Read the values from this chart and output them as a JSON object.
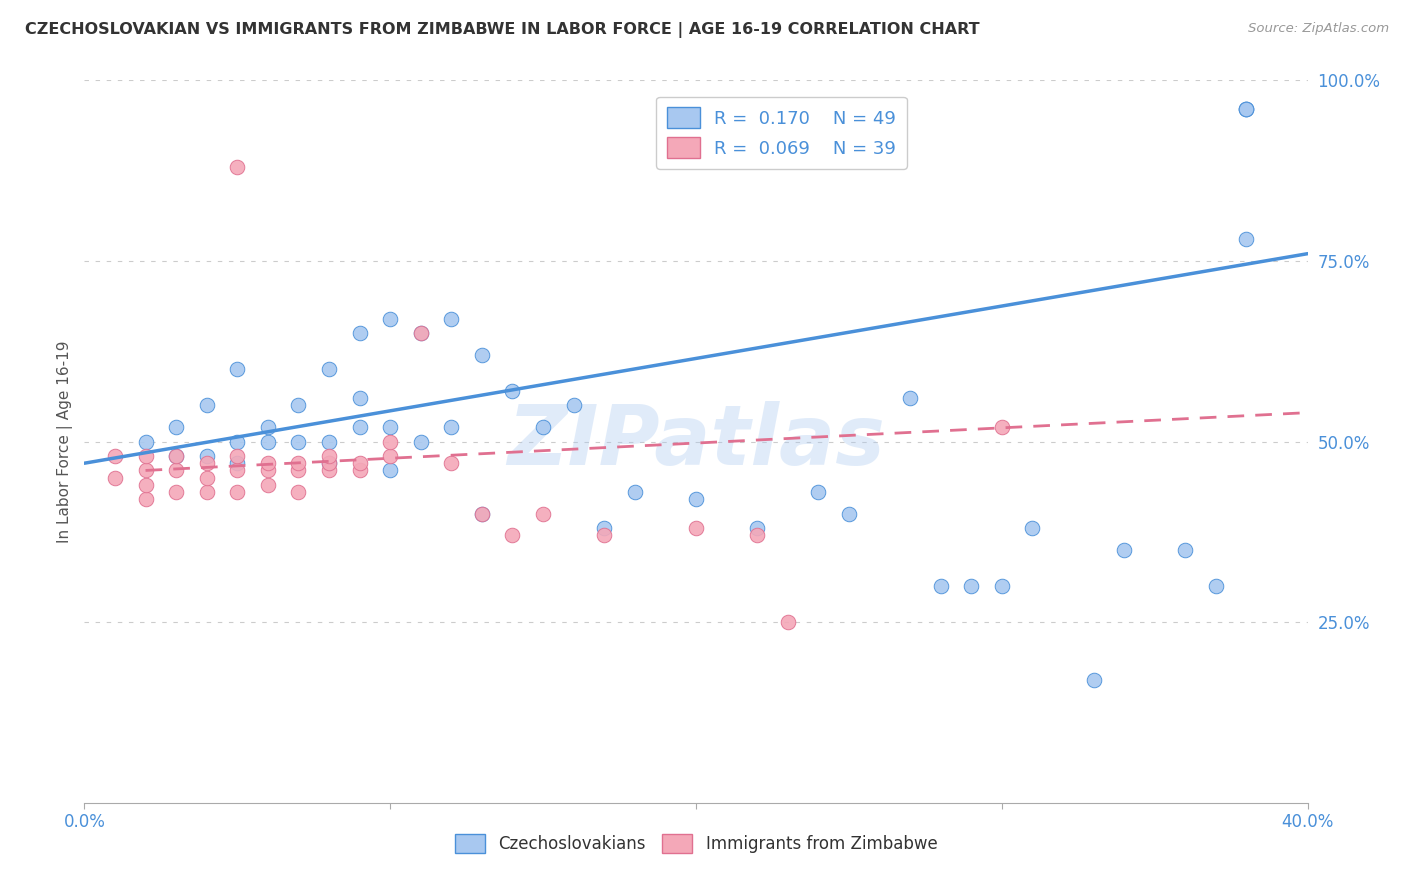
{
  "title": "CZECHOSLOVAKIAN VS IMMIGRANTS FROM ZIMBABWE IN LABOR FORCE | AGE 16-19 CORRELATION CHART",
  "source": "Source: ZipAtlas.com",
  "ylabel_label": "In Labor Force | Age 16-19",
  "x_min": 0.0,
  "x_max": 0.4,
  "y_min": 0.0,
  "y_max": 1.0,
  "x_ticks": [
    0.0,
    0.1,
    0.2,
    0.3,
    0.4
  ],
  "x_tick_labels": [
    "0.0%",
    "",
    "",
    "",
    "40.0%"
  ],
  "y_ticks": [
    0.25,
    0.5,
    0.75,
    1.0
  ],
  "y_tick_labels": [
    "25.0%",
    "50.0%",
    "75.0%",
    "100.0%"
  ],
  "legend_R_blue": "0.170",
  "legend_N_blue": "49",
  "legend_R_pink": "0.069",
  "legend_N_pink": "39",
  "blue_color": "#A8C8F0",
  "pink_color": "#F4A8B8",
  "blue_line_color": "#4A90D9",
  "pink_line_color": "#E07090",
  "watermark": "ZIPatlas",
  "blue_scatter_x": [
    0.02,
    0.03,
    0.03,
    0.04,
    0.04,
    0.05,
    0.05,
    0.05,
    0.06,
    0.06,
    0.07,
    0.07,
    0.08,
    0.08,
    0.08,
    0.09,
    0.09,
    0.09,
    0.1,
    0.1,
    0.1,
    0.11,
    0.11,
    0.12,
    0.12,
    0.13,
    0.13,
    0.14,
    0.15,
    0.16,
    0.17,
    0.18,
    0.2,
    0.22,
    0.24,
    0.25,
    0.27,
    0.28,
    0.29,
    0.3,
    0.31,
    0.33,
    0.34,
    0.36,
    0.37,
    0.38,
    0.38,
    0.38,
    0.38
  ],
  "blue_scatter_y": [
    0.5,
    0.48,
    0.52,
    0.48,
    0.55,
    0.47,
    0.5,
    0.6,
    0.5,
    0.52,
    0.5,
    0.55,
    0.47,
    0.5,
    0.6,
    0.52,
    0.56,
    0.65,
    0.46,
    0.52,
    0.67,
    0.5,
    0.65,
    0.52,
    0.67,
    0.4,
    0.62,
    0.57,
    0.52,
    0.55,
    0.38,
    0.43,
    0.42,
    0.38,
    0.43,
    0.4,
    0.56,
    0.3,
    0.3,
    0.3,
    0.38,
    0.17,
    0.35,
    0.35,
    0.3,
    0.96,
    0.96,
    0.96,
    0.78
  ],
  "pink_scatter_x": [
    0.01,
    0.01,
    0.02,
    0.02,
    0.02,
    0.02,
    0.03,
    0.03,
    0.03,
    0.04,
    0.04,
    0.04,
    0.05,
    0.05,
    0.05,
    0.05,
    0.06,
    0.06,
    0.06,
    0.07,
    0.07,
    0.07,
    0.08,
    0.08,
    0.08,
    0.09,
    0.09,
    0.1,
    0.1,
    0.11,
    0.12,
    0.13,
    0.14,
    0.15,
    0.17,
    0.2,
    0.22,
    0.23,
    0.3
  ],
  "pink_scatter_y": [
    0.45,
    0.48,
    0.42,
    0.44,
    0.46,
    0.48,
    0.43,
    0.46,
    0.48,
    0.43,
    0.45,
    0.47,
    0.43,
    0.46,
    0.48,
    0.88,
    0.44,
    0.46,
    0.47,
    0.43,
    0.46,
    0.47,
    0.46,
    0.47,
    0.48,
    0.46,
    0.47,
    0.48,
    0.5,
    0.65,
    0.47,
    0.4,
    0.37,
    0.4,
    0.37,
    0.38,
    0.37,
    0.25,
    0.52
  ],
  "blue_trend_x": [
    0.0,
    0.4
  ],
  "blue_trend_y": [
    0.47,
    0.76
  ],
  "pink_trend_x": [
    0.02,
    0.4
  ],
  "pink_trend_y": [
    0.46,
    0.54
  ],
  "grid_color": "#CCCCCC",
  "bg_color": "#FFFFFF"
}
